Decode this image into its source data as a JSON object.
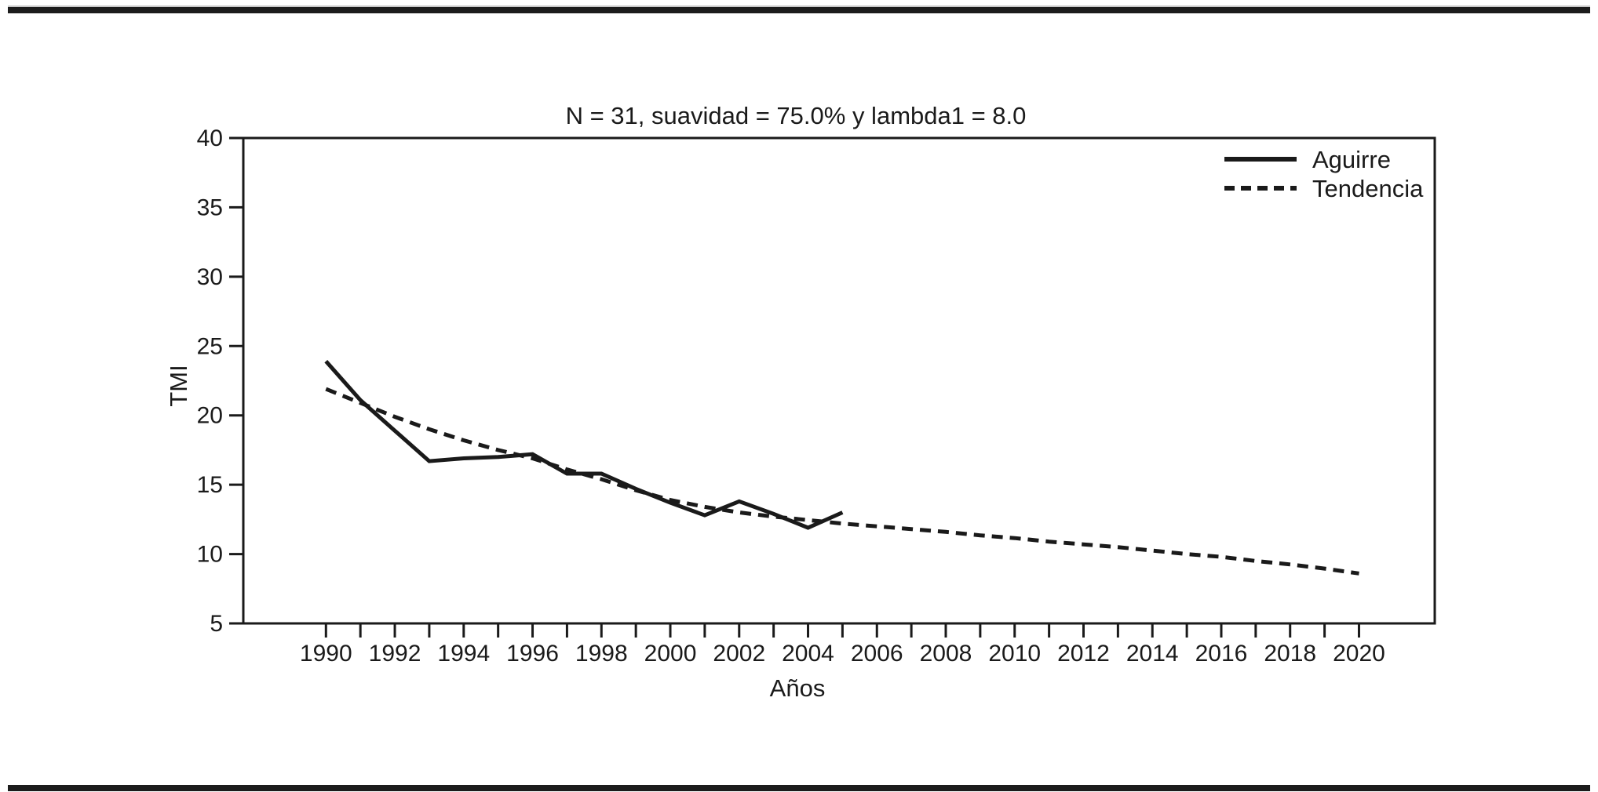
{
  "figure": {
    "background": "#ffffff",
    "ink_color": "#1a1a1a",
    "top_rule": {
      "visible": true
    },
    "bottom_rule": {
      "visible": true
    }
  },
  "chart_data": {
    "type": "line",
    "title": "N = 31, suavidad = 75.0% y lambda1 = 8.0",
    "xlabel": "Años",
    "ylabel": "TMI",
    "ylim": [
      5,
      40
    ],
    "xlim": [
      1987.6,
      2022.2
    ],
    "yticks": [
      5,
      10,
      15,
      20,
      25,
      30,
      35,
      40
    ],
    "xticks_minor": [
      1990,
      1991,
      1992,
      1993,
      1994,
      1995,
      1996,
      1997,
      1998,
      1999,
      2000,
      2001,
      2002,
      2003,
      2004,
      2005,
      2006,
      2007,
      2008,
      2009,
      2010,
      2011,
      2012,
      2013,
      2014,
      2015,
      2016,
      2017,
      2018,
      2019,
      2020
    ],
    "xtick_labels": [
      1990,
      1992,
      1994,
      1996,
      1998,
      2000,
      2002,
      2004,
      2006,
      2008,
      2010,
      2012,
      2014,
      2016,
      2018,
      2020
    ],
    "grid": false,
    "frame": true,
    "legend_position": "top-right-inside",
    "legend": [
      {
        "label": "Aguirre",
        "line_style": "solid"
      },
      {
        "label": "Tendencia",
        "line_style": "dashed"
      }
    ],
    "series": [
      {
        "name": "Aguirre",
        "line_style": "solid",
        "x": [
          1990,
          1991,
          1992,
          1993,
          1994,
          1995,
          1996,
          1997,
          1998,
          1999,
          2000,
          2001,
          2002,
          2003,
          2004,
          2005
        ],
        "values": [
          23.9,
          21.1,
          18.9,
          16.7,
          16.9,
          17.0,
          17.2,
          15.8,
          15.8,
          14.7,
          13.7,
          12.8,
          13.8,
          12.9,
          11.9,
          13.0
        ]
      },
      {
        "name": "Tendencia",
        "line_style": "dashed",
        "x": [
          1990,
          1991,
          1992,
          1993,
          1994,
          1995,
          1996,
          1997,
          1998,
          1999,
          2000,
          2001,
          2002,
          2003,
          2004,
          2005,
          2006,
          2007,
          2008,
          2009,
          2010,
          2011,
          2012,
          2013,
          2014,
          2015,
          2016,
          2017,
          2018,
          2019,
          2020
        ],
        "values": [
          21.9,
          20.9,
          19.9,
          19.0,
          18.2,
          17.5,
          16.9,
          16.1,
          15.4,
          14.6,
          13.9,
          13.4,
          13.0,
          12.7,
          12.45,
          12.2,
          12.0,
          11.8,
          11.6,
          11.35,
          11.15,
          10.9,
          10.7,
          10.5,
          10.25,
          10.0,
          9.8,
          9.5,
          9.25,
          8.95,
          8.6
        ]
      }
    ]
  }
}
